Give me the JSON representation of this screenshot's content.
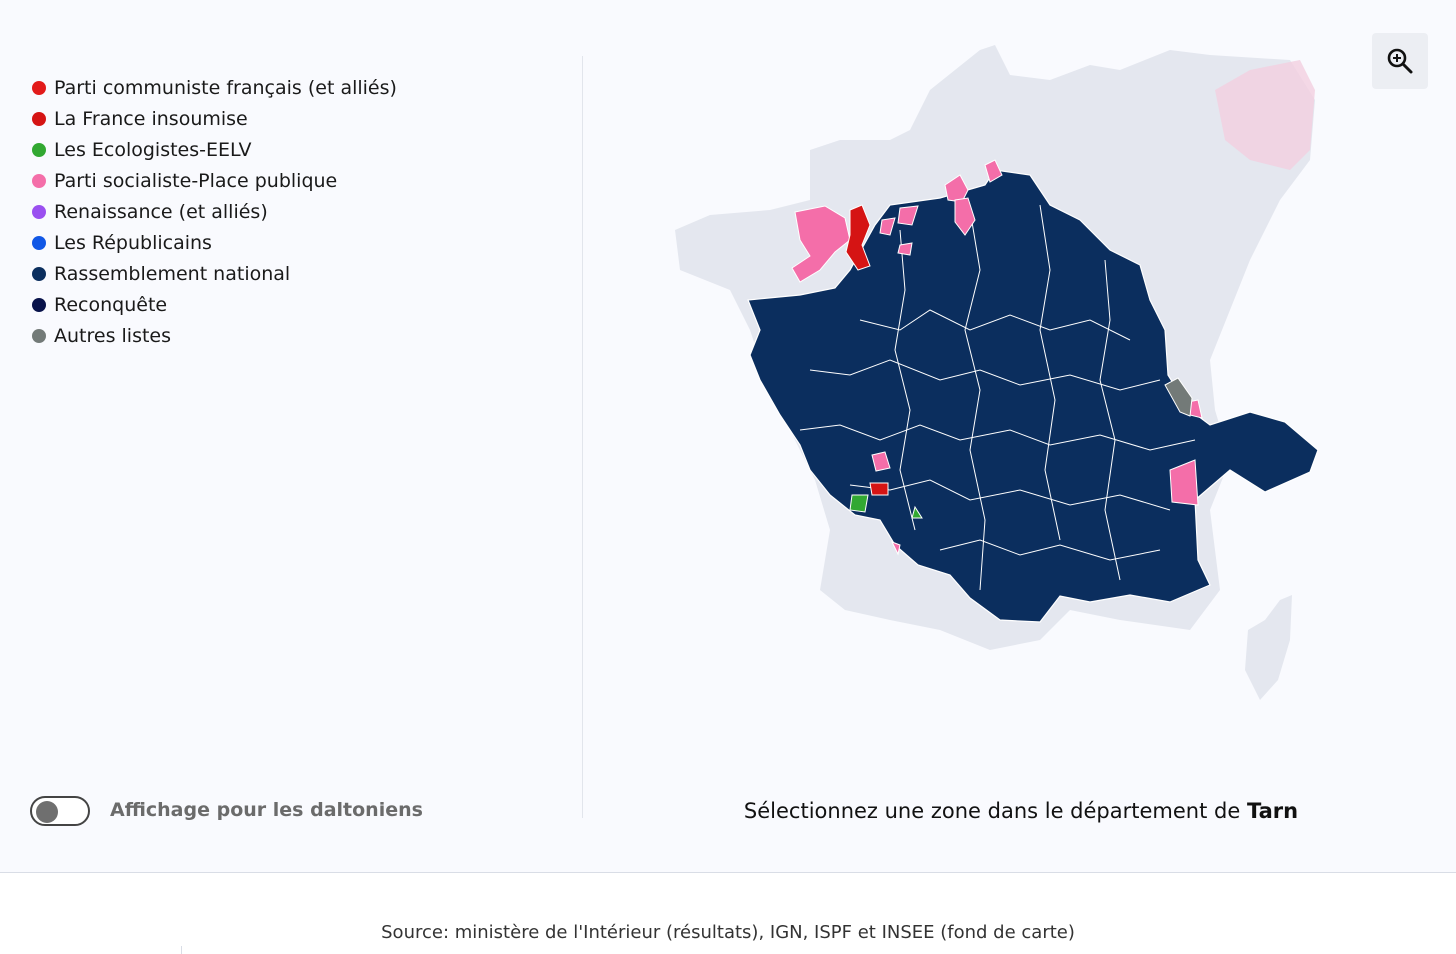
{
  "legend": [
    {
      "label": "Parti communiste français (et alliés)",
      "color": "#e21a1a"
    },
    {
      "label": "La France insoumise",
      "color": "#d51414"
    },
    {
      "label": "Les Ecologistes-EELV",
      "color": "#32a832"
    },
    {
      "label": "Parti socialiste-Place publique",
      "color": "#f46ea9"
    },
    {
      "label": "Renaissance (et alliés)",
      "color": "#9a4ff0"
    },
    {
      "label": "Les Républicains",
      "color": "#1157e6"
    },
    {
      "label": "Rassemblement national",
      "color": "#0b2e5e"
    },
    {
      "label": "Reconquête",
      "color": "#08124a"
    },
    {
      "label": "Autres listes",
      "color": "#737a78"
    }
  ],
  "colorblind_toggle": {
    "label": "Affichage pour les daltoniens",
    "enabled": false
  },
  "selection": {
    "prefix": "Sélectionnez une zone dans le département de",
    "department": "Tarn"
  },
  "source": "Source: ministère de l'Intérieur (résultats), IGN, ISPF et INSEE (fond de carte)",
  "icons": {
    "zoom": "zoom-in-magnifier-icon"
  },
  "map_colors": {
    "background_country": "#e4e7ef",
    "rn": "#0b2e5e",
    "ps": "#f46ea9",
    "lfi": "#d51414",
    "eelv": "#32a832",
    "autres": "#737a78",
    "boundary": "#ffffff"
  }
}
